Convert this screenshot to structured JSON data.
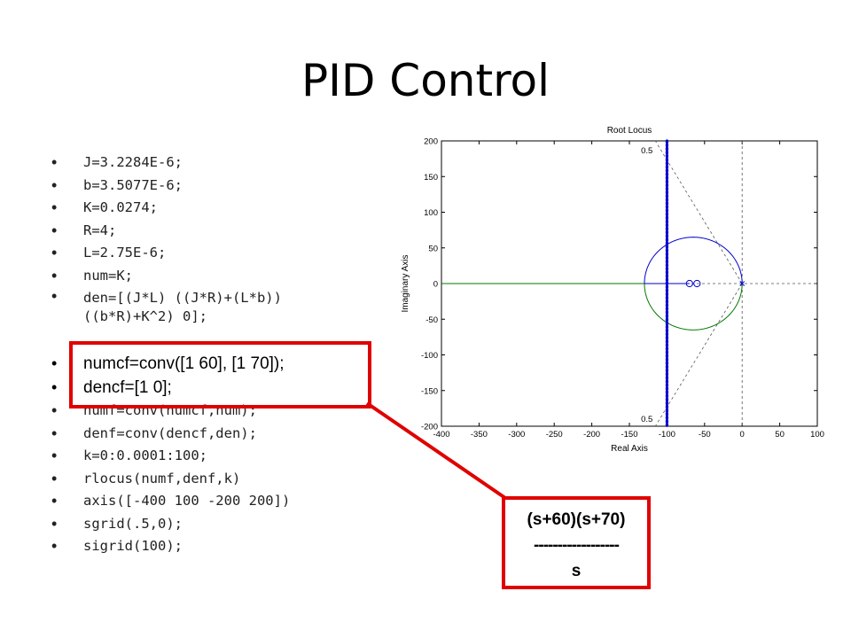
{
  "slide": {
    "title": "PID Control",
    "code_lines_1": [
      "J=3.2284E-6;",
      "b=3.5077E-6;",
      "K=0.0274;",
      "R=4;",
      "L=2.75E-6;",
      "num=K;",
      "den=[(J*L) ((J*R)+(L*b))",
      "((b*R)+K^2) 0];"
    ],
    "code_lines_2": [
      "numcf=conv([1 60], [1 70]);",
      "dencf=[1 0];",
      "numf=conv(numcf,num);",
      "denf=conv(dencf,den);",
      "k=0:0.0001:100;",
      "rlocus(numf,denf,k)",
      "axis([-400 100 -200 200])",
      "sgrid(.5,0);",
      "sigrid(100);"
    ],
    "callout": {
      "numerator": "(s+60)(s+70)",
      "divider": "------------------",
      "denominator": "s"
    },
    "colors": {
      "highlight": "#e00000",
      "locus_blue": "#0000cc",
      "locus_green": "#007700"
    }
  },
  "chart_data": {
    "type": "line",
    "title": "Root Locus",
    "xlabel": "Real Axis",
    "ylabel": "Imaginary Axis",
    "xlim": [
      -400,
      100
    ],
    "ylim": [
      -200,
      200
    ],
    "xticks": [
      -400,
      -350,
      -300,
      -250,
      -200,
      -150,
      -100,
      -50,
      0,
      50,
      100
    ],
    "yticks": [
      200,
      150,
      100,
      50,
      0,
      -50,
      -100,
      -150,
      -200
    ],
    "grid": false,
    "zeros": [
      [
        -60,
        0
      ],
      [
        -70,
        0
      ]
    ],
    "poles": [
      [
        0,
        0
      ]
    ],
    "series": [
      {
        "color": "blue",
        "style": "circle-upper",
        "center": [
          -65,
          0
        ],
        "radius": 65
      },
      {
        "color": "green",
        "style": "circle-lower",
        "center": [
          -65,
          0
        ],
        "radius": 65
      },
      {
        "color": "green",
        "style": "real-axis",
        "x": [
          -400,
          -130
        ]
      },
      {
        "color": "blue",
        "style": "real-axis",
        "x": [
          -130,
          -70
        ]
      }
    ],
    "sigma_line": {
      "x": -100,
      "style": "dotted",
      "color": "blue"
    },
    "damping_ratio": 0.5,
    "damping_labels": [
      "0.5",
      "0.5"
    ]
  }
}
